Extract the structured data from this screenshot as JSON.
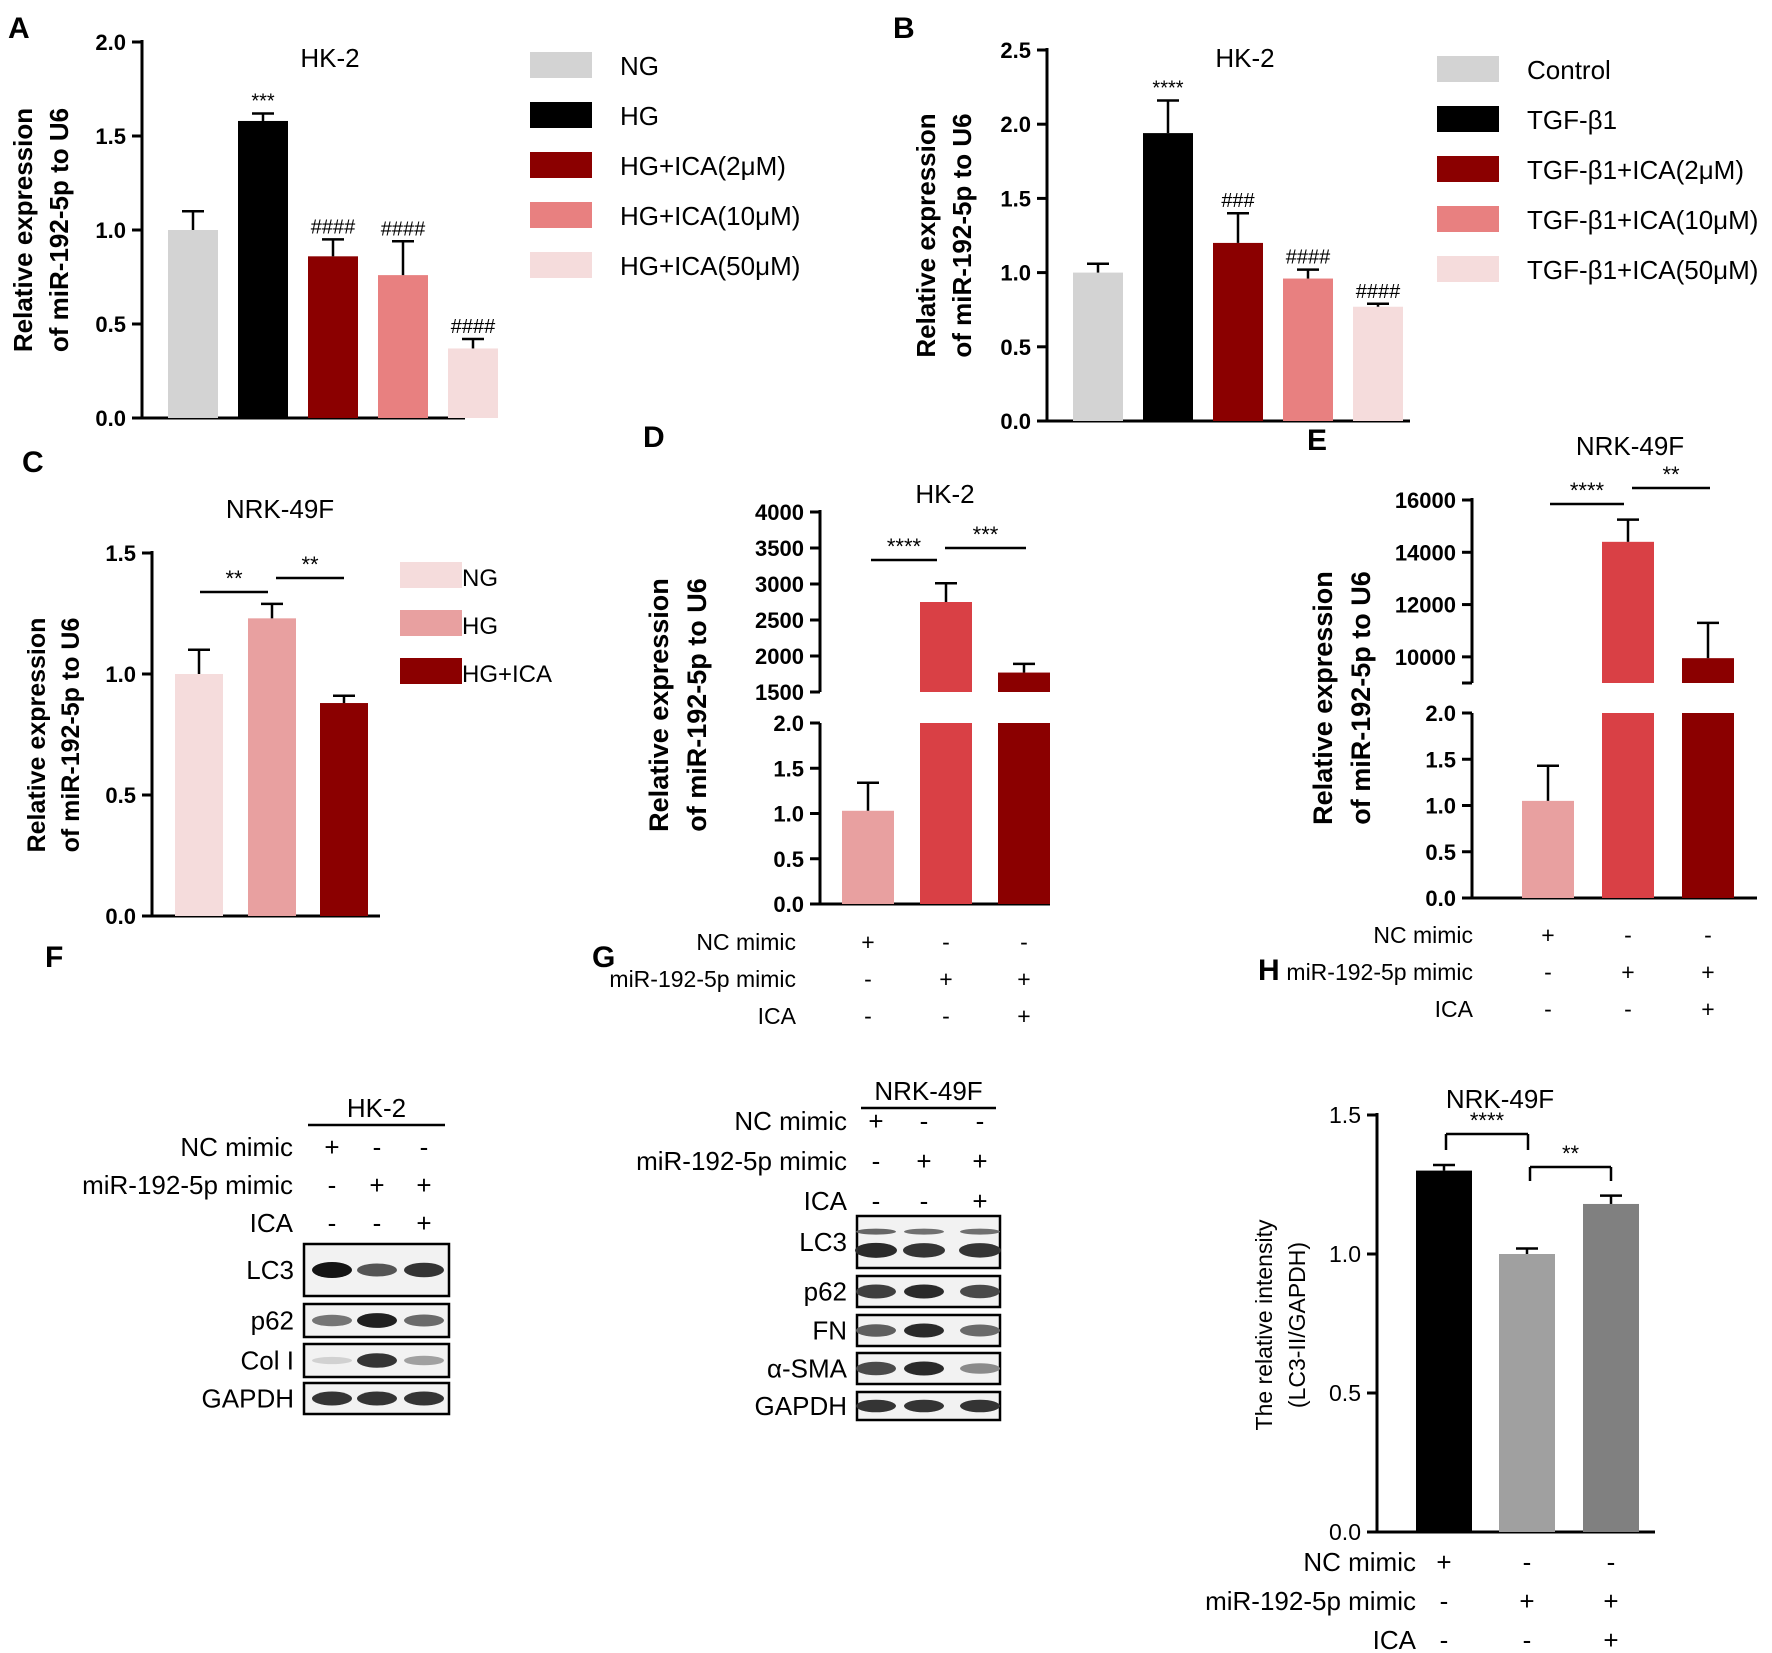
{
  "figure": {
    "panel_letters": [
      "A",
      "B",
      "C",
      "D",
      "E",
      "F",
      "G",
      "H"
    ]
  },
  "chart_data": [
    {
      "panel": "A",
      "type": "bar",
      "title": "HK-2",
      "ylabel": [
        "Relative expression",
        "of miR-192-5p to U6"
      ],
      "ylim": [
        0,
        2.0
      ],
      "yticks": [
        "0.0",
        "0.5",
        "1.0",
        "1.5",
        "2.0"
      ],
      "categories": [
        "NG",
        "HG",
        "HG+ICA(2μM)",
        "HG+ICA(10μM)",
        "HG+ICA(50μM)"
      ],
      "values": [
        1.0,
        1.58,
        0.86,
        0.76,
        0.37
      ],
      "errors": [
        0.1,
        0.04,
        0.09,
        0.18,
        0.05
      ],
      "colors": [
        "#d3d3d3",
        "#000000",
        "#8b0000",
        "#e88080",
        "#f5dcdc"
      ],
      "labels": [
        "",
        "***",
        "####",
        "####",
        "####"
      ],
      "legend": [
        "NG",
        "HG",
        "HG+ICA(2μM)",
        "HG+ICA(10μM)",
        "HG+ICA(50μM)"
      ]
    },
    {
      "panel": "B",
      "type": "bar",
      "title": "HK-2",
      "ylabel": [
        "Relative expression",
        "of miR-192-5p to U6"
      ],
      "ylim": [
        0,
        2.5
      ],
      "yticks": [
        "0.0",
        "0.5",
        "1.0",
        "1.5",
        "2.0",
        "2.5"
      ],
      "categories": [
        "Control",
        "TGF-β1",
        "TGF-β1+ICA(2μM)",
        "TGF-β1+ICA(10μM)",
        "TGF-β1+ICA(50μM)"
      ],
      "values": [
        1.0,
        1.94,
        1.2,
        0.96,
        0.77
      ],
      "errors": [
        0.06,
        0.22,
        0.2,
        0.06,
        0.02
      ],
      "colors": [
        "#d3d3d3",
        "#000000",
        "#8b0000",
        "#e88080",
        "#f5dcdc"
      ],
      "labels": [
        "",
        "****",
        "###",
        "####",
        "####"
      ],
      "legend": [
        "Control",
        "TGF-β1",
        "TGF-β1+ICA(2μM)",
        "TGF-β1+ICA(10μM)",
        "TGF-β1+ICA(50μM)"
      ]
    },
    {
      "panel": "C",
      "type": "bar",
      "title": "NRK-49F",
      "ylabel": [
        "Relative expression",
        "of miR-192-5p to U6"
      ],
      "ylim": [
        0,
        1.5
      ],
      "yticks": [
        "0.0",
        "0.5",
        "1.0",
        "1.5"
      ],
      "categories": [
        "NG",
        "HG",
        "HG+ICA"
      ],
      "values": [
        1.0,
        1.23,
        0.88
      ],
      "errors": [
        0.1,
        0.06,
        0.03
      ],
      "colors": [
        "#f5dcdc",
        "#e8a0a0",
        "#8b0000"
      ],
      "brackets": [
        {
          "from": 0,
          "to": 1,
          "label": "**"
        },
        {
          "from": 1,
          "to": 2,
          "label": "**"
        }
      ],
      "legend": [
        "NG",
        "HG",
        "HG+ICA"
      ]
    },
    {
      "panel": "D",
      "type": "bar",
      "title": "HK-2",
      "ylabel": [
        "Relative expression",
        "of miR-192-5p to U6"
      ],
      "yticks_lower": [
        "0.0",
        "0.5",
        "1.0",
        "1.5",
        "2.0"
      ],
      "yticks_upper": [
        "1500",
        "2000",
        "2500",
        "3000",
        "3500",
        "4000"
      ],
      "values": [
        1.03,
        2750,
        1770
      ],
      "errors": [
        0.31,
        260,
        120
      ],
      "colors": [
        "#e8a0a0",
        "#d94045",
        "#8b0000"
      ],
      "brackets": [
        {
          "from": 0,
          "to": 1,
          "label": "****"
        },
        {
          "from": 1,
          "to": 2,
          "label": "***"
        }
      ],
      "conditions": [
        {
          "name": "NC mimic",
          "values": [
            "+",
            "-",
            "-"
          ]
        },
        {
          "name": "miR-192-5p mimic",
          "values": [
            "-",
            "+",
            "+"
          ]
        },
        {
          "name": "ICA",
          "values": [
            "-",
            "-",
            "+"
          ]
        }
      ]
    },
    {
      "panel": "E",
      "type": "bar",
      "title": "NRK-49F",
      "ylabel": [
        "Relative expression",
        "of miR-192-5p to U6"
      ],
      "yticks_lower": [
        "0.0",
        "0.5",
        "1.0",
        "1.5",
        "2.0"
      ],
      "yticks_upper": [
        "10000",
        "12000",
        "14000",
        "16000"
      ],
      "values": [
        1.05,
        14400,
        9950
      ],
      "errors": [
        0.38,
        850,
        1350
      ],
      "colors": [
        "#e8a0a0",
        "#d94045",
        "#8b0000"
      ],
      "brackets": [
        {
          "from": 0,
          "to": 1,
          "label": "****"
        },
        {
          "from": 1,
          "to": 2,
          "label": "**"
        }
      ],
      "conditions": [
        {
          "name": "NC mimic",
          "values": [
            "+",
            "-",
            "-"
          ]
        },
        {
          "name": "miR-192-5p mimic",
          "values": [
            "-",
            "+",
            "+"
          ]
        },
        {
          "name": "ICA",
          "values": [
            "-",
            "-",
            "+"
          ]
        }
      ]
    },
    {
      "panel": "H",
      "type": "bar",
      "title": "NRK-49F",
      "ylabel": [
        "The relative intensity",
        "(LC3-II/GAPDH)"
      ],
      "ylim": [
        0,
        1.5
      ],
      "yticks": [
        "0.0",
        "0.5",
        "1.0",
        "1.5"
      ],
      "values": [
        1.3,
        1.0,
        1.18
      ],
      "errors": [
        0.02,
        0.02,
        0.03
      ],
      "colors": [
        "#000000",
        "#a0a0a0",
        "#808080"
      ],
      "brackets": [
        {
          "from": 0,
          "to": 1,
          "label": "****"
        },
        {
          "from": 1,
          "to": 2,
          "label": "**"
        }
      ],
      "conditions": [
        {
          "name": "NC mimic",
          "values": [
            "+",
            "-",
            "-"
          ]
        },
        {
          "name": "miR-192-5p mimic",
          "values": [
            "-",
            "+",
            "+"
          ]
        },
        {
          "name": "ICA",
          "values": [
            "-",
            "-",
            "+"
          ]
        }
      ]
    }
  ],
  "blots": [
    {
      "panel": "F",
      "title": "HK-2",
      "conditions": [
        {
          "name": "NC mimic",
          "values": [
            "+",
            "-",
            "-"
          ]
        },
        {
          "name": "miR-192-5p mimic",
          "values": [
            "-",
            "+",
            "+"
          ]
        },
        {
          "name": "ICA",
          "values": [
            "-",
            "-",
            "+"
          ]
        }
      ],
      "rows": [
        {
          "name": "LC3",
          "intensity": [
            1.0,
            0.7,
            0.85
          ],
          "double": false
        },
        {
          "name": "p62",
          "intensity": [
            0.55,
            0.95,
            0.6
          ],
          "double": false
        },
        {
          "name": "Col I",
          "intensity": [
            0.12,
            0.85,
            0.35
          ],
          "double": false
        },
        {
          "name": "GAPDH",
          "intensity": [
            0.85,
            0.85,
            0.85
          ],
          "double": false
        }
      ]
    },
    {
      "panel": "G",
      "title": "NRK-49F",
      "conditions": [
        {
          "name": "NC mimic",
          "values": [
            "+",
            "-",
            "-"
          ]
        },
        {
          "name": "miR-192-5p mimic",
          "values": [
            "-",
            "+",
            "+"
          ]
        },
        {
          "name": "ICA",
          "values": [
            "-",
            "-",
            "+"
          ]
        }
      ],
      "rows": [
        {
          "name": "LC3",
          "intensity": [
            0.9,
            0.85,
            0.85
          ],
          "double": true
        },
        {
          "name": "p62",
          "intensity": [
            0.8,
            0.9,
            0.75
          ],
          "double": false
        },
        {
          "name": "FN",
          "intensity": [
            0.65,
            0.9,
            0.6
          ],
          "double": false
        },
        {
          "name": "α-SMA",
          "intensity": [
            0.75,
            0.9,
            0.45
          ],
          "double": false
        },
        {
          "name": "GAPDH",
          "intensity": [
            0.85,
            0.85,
            0.85
          ],
          "double": false
        }
      ]
    }
  ]
}
